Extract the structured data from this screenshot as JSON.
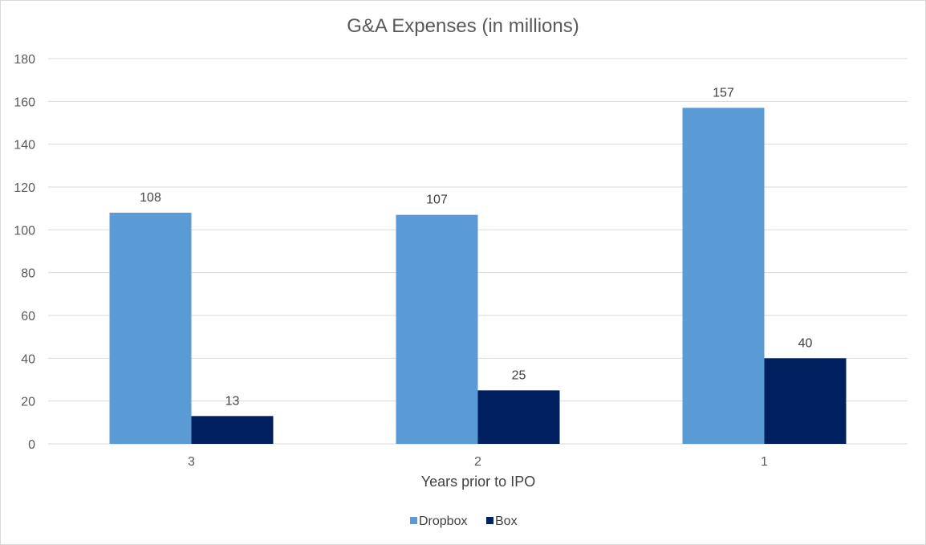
{
  "chart_data": {
    "type": "bar",
    "title": "G&A Expenses (in millions)",
    "xlabel": "Years prior to IPO",
    "ylabel": "",
    "categories": [
      "3",
      "2",
      "1"
    ],
    "series": [
      {
        "name": "Dropbox",
        "values": [
          108,
          107,
          157
        ],
        "color": "#5b9bd5"
      },
      {
        "name": "Box",
        "values": [
          13,
          25,
          40
        ],
        "color": "#002060"
      }
    ],
    "ylim": [
      0,
      180
    ],
    "yticks": [
      0,
      20,
      40,
      60,
      80,
      100,
      120,
      140,
      160,
      180
    ],
    "grid": true,
    "legend": "bottom-center"
  }
}
